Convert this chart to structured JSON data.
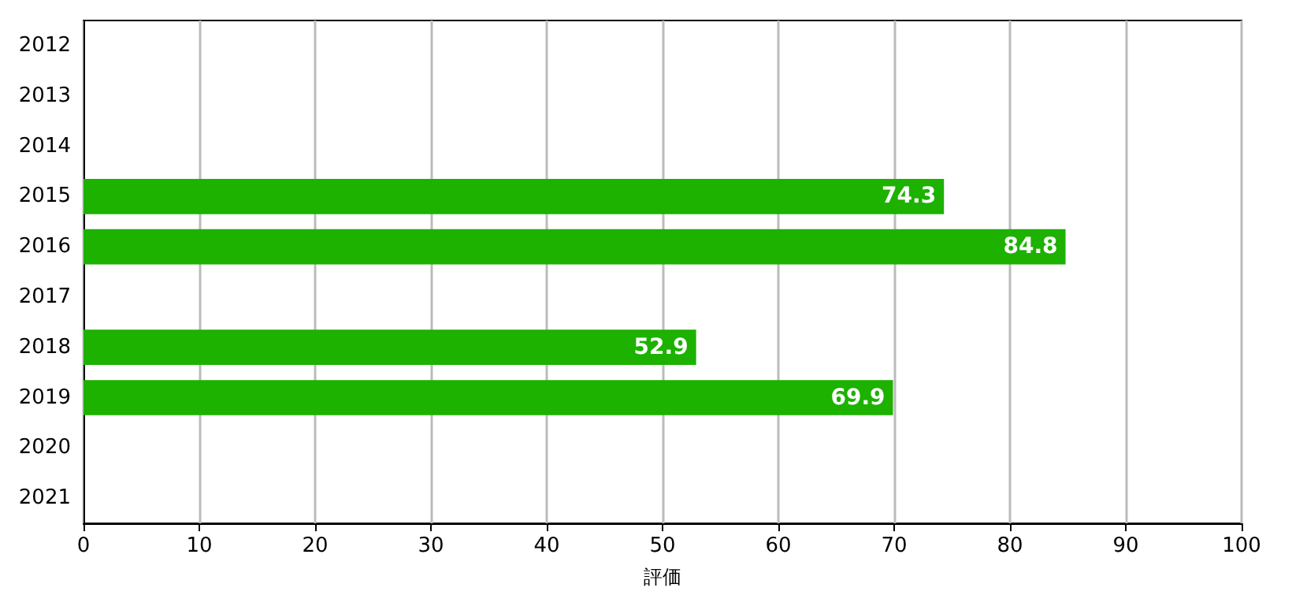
{
  "chart_data": {
    "type": "bar",
    "orientation": "horizontal",
    "xlabel": "評価",
    "categories": [
      "2012",
      "2013",
      "2014",
      "2015",
      "2016",
      "2017",
      "2018",
      "2019",
      "2020",
      "2021"
    ],
    "values": [
      null,
      null,
      null,
      74.3,
      84.8,
      null,
      52.9,
      69.9,
      null,
      null
    ],
    "color": "#1db100",
    "xlim": [
      0,
      100
    ],
    "xticks": [
      0,
      10,
      20,
      30,
      40,
      50,
      60,
      70,
      80,
      90,
      100
    ],
    "grid": "x",
    "data_labels": true
  }
}
